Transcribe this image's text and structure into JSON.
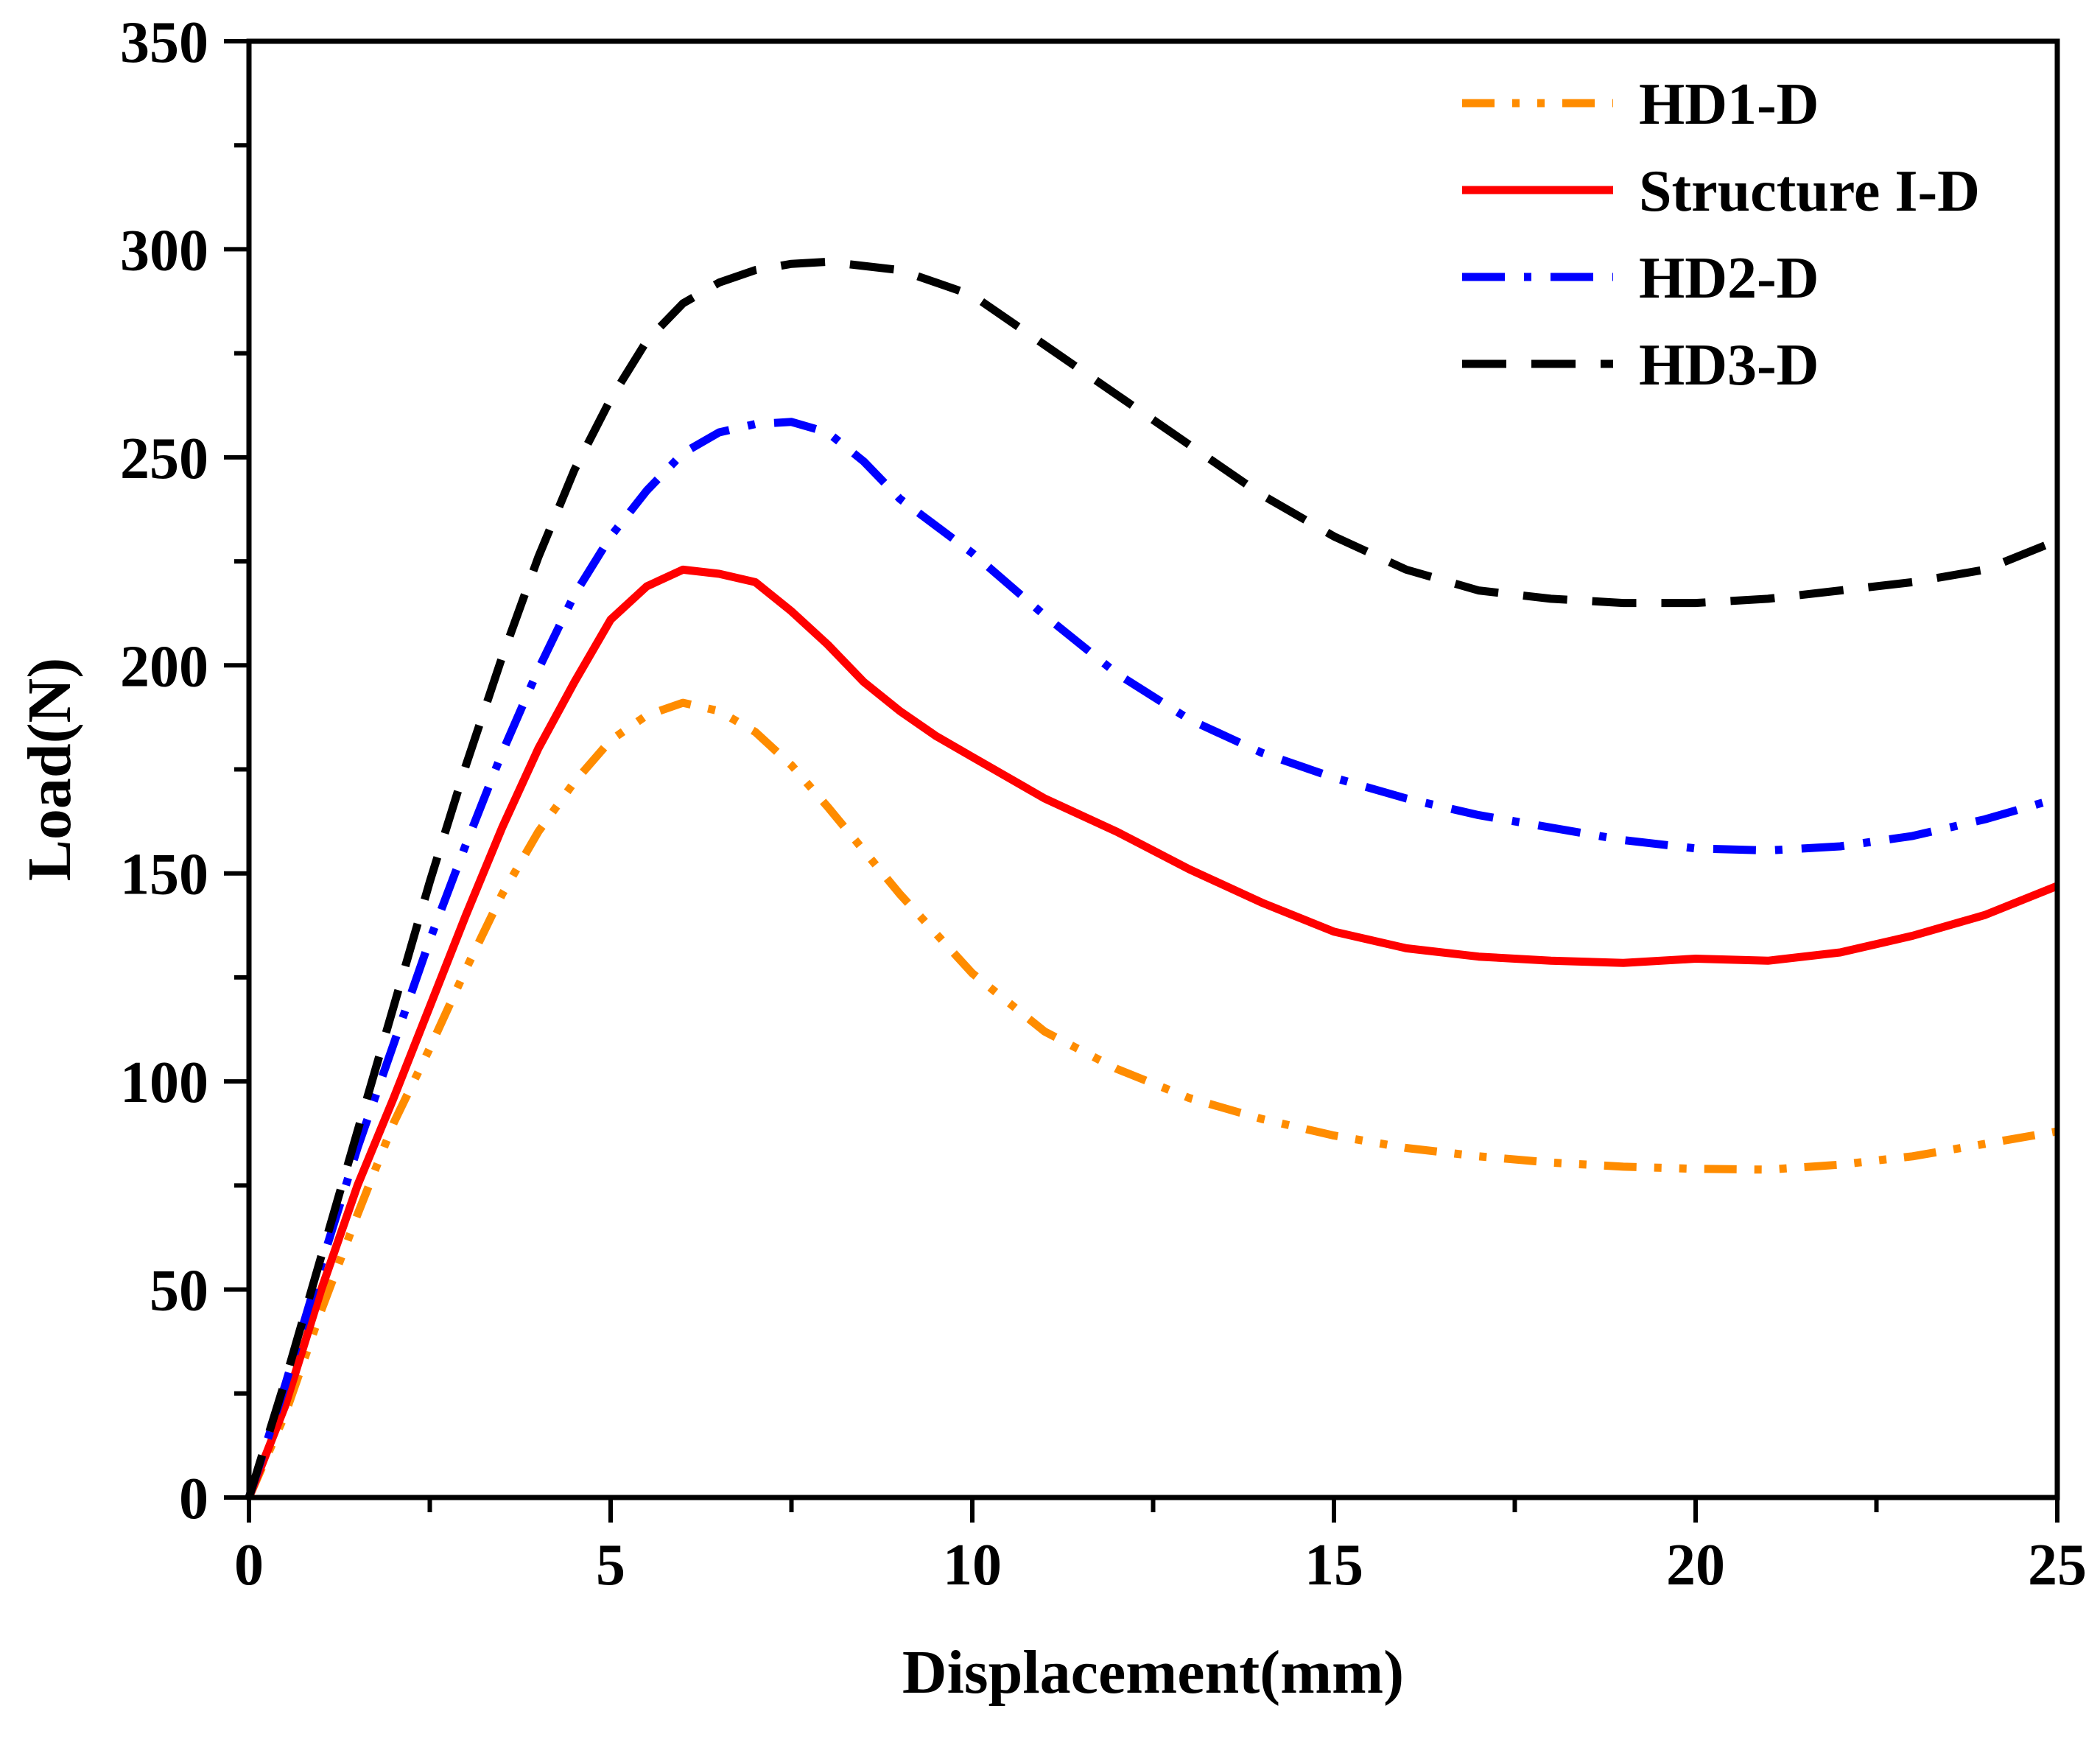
{
  "chart_data": {
    "type": "line",
    "title": "",
    "xlabel": "Displacement(mm)",
    "ylabel": "Load(N)",
    "xlim": [
      0,
      25
    ],
    "ylim": [
      0,
      350
    ],
    "xticks": [
      0,
      5,
      10,
      15,
      20,
      25
    ],
    "yticks": [
      0,
      50,
      100,
      150,
      200,
      250,
      300,
      350
    ],
    "xtick_labels": [
      "0",
      "5",
      "10",
      "15",
      "20",
      "25"
    ],
    "ytick_labels": [
      "0",
      "50",
      "100",
      "150",
      "200",
      "250",
      "300",
      "350"
    ],
    "grid": false,
    "legend_position": "top-right",
    "series": [
      {
        "name": "HD1-D",
        "color": "#FF8C00",
        "style": "dash-dot-dot",
        "x": [
          0,
          0.5,
          1,
          1.5,
          2,
          2.5,
          3,
          3.5,
          4,
          4.5,
          5,
          5.5,
          6,
          6.5,
          7,
          7.5,
          8,
          9,
          10,
          11,
          12,
          13,
          14,
          15,
          16,
          17,
          18,
          19,
          20,
          21,
          22,
          23,
          24,
          25
        ],
        "y": [
          0,
          20,
          45,
          68,
          90,
          108,
          127,
          145,
          160,
          172,
          182,
          188,
          191,
          189,
          184,
          176,
          166,
          145,
          126,
          112,
          103,
          96,
          91,
          87,
          84,
          82,
          80.5,
          79.5,
          79,
          78.8,
          80,
          82,
          85,
          88
        ]
      },
      {
        "name": "Structure I-D",
        "color": "#FF0000",
        "style": "solid",
        "x": [
          0,
          0.5,
          1,
          1.5,
          2,
          2.5,
          3,
          3.5,
          4,
          4.5,
          5,
          5.5,
          6,
          6.5,
          7,
          7.5,
          8,
          8.5,
          9,
          9.5,
          10,
          11,
          12,
          13,
          14,
          15,
          16,
          17,
          18,
          19,
          20,
          21,
          22,
          23,
          24,
          25
        ],
        "y": [
          0,
          22,
          50,
          75,
          96,
          118,
          140,
          161,
          180,
          196,
          211,
          219,
          223,
          222,
          220,
          213,
          205,
          196,
          189,
          183,
          178,
          168,
          160,
          151,
          143,
          136,
          132,
          130,
          129,
          128.5,
          129.5,
          129,
          131,
          135,
          140,
          147
        ]
      },
      {
        "name": "HD2-D",
        "color": "#0000FF",
        "style": "dash-dot",
        "x": [
          0,
          0.5,
          1,
          1.5,
          2,
          2.5,
          3,
          3.5,
          4,
          4.5,
          5,
          5.5,
          6,
          6.5,
          7,
          7.5,
          8,
          8.5,
          9,
          10,
          11,
          12,
          13,
          14,
          15,
          16,
          17,
          18,
          19,
          20,
          21,
          22,
          23,
          24,
          25
        ],
        "y": [
          0,
          27,
          56,
          84,
          109,
          134,
          157,
          179,
          199,
          217,
          231,
          242,
          251,
          256,
          258,
          258.5,
          256,
          249,
          240,
          227,
          212,
          198,
          187,
          179,
          173,
          168,
          164,
          161,
          158,
          156,
          155.5,
          156.5,
          159,
          163,
          168
        ]
      },
      {
        "name": "HD3-D",
        "color": "#000000",
        "style": "dashed",
        "x": [
          0,
          0.5,
          1,
          1.5,
          2,
          2.5,
          3,
          3.5,
          4,
          4.5,
          5,
          5.5,
          6,
          6.5,
          7,
          7.5,
          8,
          9,
          10,
          11,
          12,
          13,
          14,
          15,
          16,
          17,
          18,
          19,
          20,
          21,
          22,
          23,
          24,
          25
        ],
        "y": [
          0,
          28,
          58,
          88,
          118,
          148,
          176,
          202,
          226,
          247,
          264,
          278,
          287,
          292,
          295,
          296.5,
          297,
          295,
          289,
          277,
          265,
          253,
          241,
          231,
          223,
          218,
          216,
          215,
          215,
          216,
          218,
          220,
          223,
          230
        ]
      }
    ]
  }
}
